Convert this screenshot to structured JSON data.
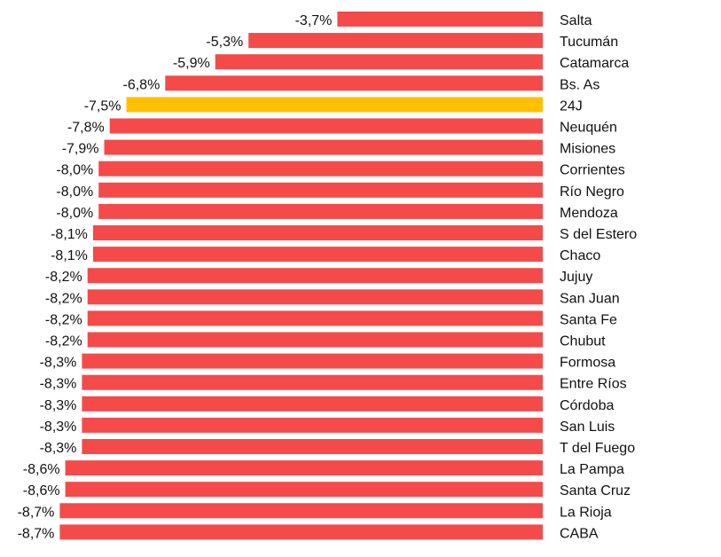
{
  "chart_data": {
    "type": "bar",
    "orientation": "horizontal",
    "categories": [
      "Salta",
      "Tucumán",
      "Catamarca",
      "Bs. As",
      "24J",
      "Neuquén",
      "Misiones",
      "Corrientes",
      "Río Negro",
      "Mendoza",
      "S del Estero",
      "Chaco",
      "Jujuy",
      "San Juan",
      "Santa Fe",
      "Chubut",
      "Formosa",
      "Entre Ríos",
      "Córdoba",
      "San Luis",
      "T del Fuego",
      "La Pampa",
      "Santa Cruz",
      "La Rioja",
      "CABA"
    ],
    "values": [
      -3.7,
      -5.3,
      -5.9,
      -6.8,
      -7.5,
      -7.8,
      -7.9,
      -8.0,
      -8.0,
      -8.0,
      -8.1,
      -8.1,
      -8.2,
      -8.2,
      -8.2,
      -8.2,
      -8.3,
      -8.3,
      -8.3,
      -8.3,
      -8.3,
      -8.6,
      -8.6,
      -8.7,
      -8.7
    ],
    "labels": [
      "-3,7%",
      "-5,3%",
      "-5,9%",
      "-6,8%",
      "-7,5%",
      "-7,8%",
      "-7,9%",
      "-8,0%",
      "-8,0%",
      "-8,0%",
      "-8,1%",
      "-8,1%",
      "-8,2%",
      "-8,2%",
      "-8,2%",
      "-8,2%",
      "-8,3%",
      "-8,3%",
      "-8,3%",
      "-8,3%",
      "-8,3%",
      "-8,6%",
      "-8,6%",
      "-8,7%",
      "-8,7%"
    ],
    "highlight": "24J",
    "colors": {
      "bar": "#F44A4A",
      "highlight": "#FFC000"
    },
    "xlim": [
      -8.7,
      0
    ],
    "grid": false,
    "title": "",
    "xlabel": "",
    "ylabel": ""
  }
}
